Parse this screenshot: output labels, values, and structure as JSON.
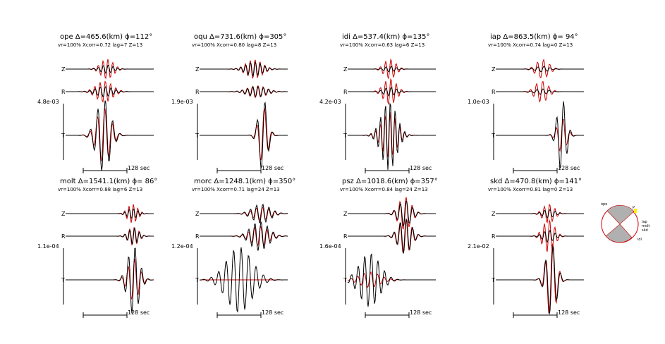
{
  "figure": {
    "stations": [
      {
        "title": "ope  Δ=465.6(km)  ϕ=112°",
        "info": "vr=100% Xcorr=0.72 lag=7 Z=13",
        "amplitude": "4.8e-03",
        "components": [
          {
            "label": "Z",
            "data_amp": 0.18,
            "synth_amp": 0.42,
            "center": 0.47,
            "period": 0.055,
            "width": 0.1
          },
          {
            "label": "R",
            "data_amp": 0.22,
            "synth_amp": 0.45,
            "center": 0.44,
            "period": 0.06,
            "width": 0.13
          },
          {
            "label": "T",
            "data_amp": 0.95,
            "synth_amp": 0.72,
            "center": 0.43,
            "period": 0.085,
            "width": 0.11
          }
        ],
        "time_label": "128 sec"
      },
      {
        "title": "oqu  Δ=731.6(km)  ϕ=305°",
        "info": "vr=100% Xcorr=0.80 lag=8 Z=13",
        "amplitude": "1.9e-03",
        "components": [
          {
            "label": "Z",
            "data_amp": 0.3,
            "synth_amp": 0.4,
            "center": 0.62,
            "period": 0.055,
            "width": 0.13
          },
          {
            "label": "R",
            "data_amp": 0.22,
            "synth_amp": 0.25,
            "center": 0.65,
            "period": 0.06,
            "width": 0.15
          },
          {
            "label": "T",
            "data_amp": 0.95,
            "synth_amp": 0.75,
            "center": 0.72,
            "period": 0.09,
            "width": 0.07
          }
        ],
        "time_label": "128 sec"
      },
      {
        "title": "idi  Δ=537.4(km)  ϕ=135°",
        "info": "vr=100% Xcorr=0.63 lag=6 Z=13",
        "amplitude": "4.2e-03",
        "components": [
          {
            "label": "Z",
            "data_amp": 0.12,
            "synth_amp": 0.42,
            "center": 0.48,
            "period": 0.06,
            "width": 0.09
          },
          {
            "label": "R",
            "data_amp": 0.18,
            "synth_amp": 0.55,
            "center": 0.48,
            "period": 0.06,
            "width": 0.1
          },
          {
            "label": "T",
            "data_amp": 0.9,
            "synth_amp": 0.6,
            "center": 0.47,
            "period": 0.055,
            "width": 0.12
          }
        ],
        "time_label": "128 sec"
      },
      {
        "title": "iap  Δ=863.5(km)  ϕ= 94°",
        "info": "vr=100% Xcorr=0.74 lag=0 Z=13",
        "amplitude": "1.0e-03",
        "components": [
          {
            "label": "Z",
            "data_amp": 0.12,
            "synth_amp": 0.4,
            "center": 0.53,
            "period": 0.07,
            "width": 0.1
          },
          {
            "label": "R",
            "data_amp": 0.12,
            "synth_amp": 0.45,
            "center": 0.52,
            "period": 0.07,
            "width": 0.1
          },
          {
            "label": "T",
            "data_amp": 0.95,
            "synth_amp": 0.45,
            "center": 0.75,
            "period": 0.08,
            "width": 0.07
          }
        ],
        "time_label": "128 sec"
      },
      {
        "title": "molt  Δ=1541.1(km)  ϕ= 86°",
        "info": "vr=100% Xcorr=0.88 lag=6 Z=13",
        "amplitude": "1.1e-04",
        "components": [
          {
            "label": "Z",
            "data_amp": 0.22,
            "synth_amp": 0.4,
            "center": 0.76,
            "period": 0.05,
            "width": 0.08
          },
          {
            "label": "R",
            "data_amp": 0.35,
            "synth_amp": 0.4,
            "center": 0.77,
            "period": 0.055,
            "width": 0.08
          },
          {
            "label": "T",
            "data_amp": 0.9,
            "synth_amp": 0.55,
            "center": 0.77,
            "period": 0.075,
            "width": 0.09
          }
        ],
        "time_label": "128 sec"
      },
      {
        "title": "morc  Δ=1248.1(km)  ϕ=350°",
        "info": "vr=100% Xcorr=0.71 lag=24 Z=13",
        "amplitude": "1.2e-04",
        "components": [
          {
            "label": "Z",
            "data_amp": 0.4,
            "synth_amp": 0.28,
            "center": 0.7,
            "period": 0.07,
            "width": 0.14
          },
          {
            "label": "R",
            "data_amp": 0.62,
            "synth_amp": 0.42,
            "center": 0.68,
            "period": 0.07,
            "width": 0.14
          },
          {
            "label": "T",
            "data_amp": 0.85,
            "synth_amp": 0.0,
            "center": 0.45,
            "period": 0.085,
            "width": 0.2
          }
        ],
        "time_label": "128 sec"
      },
      {
        "title": "psz  Δ=1018.6(km)  ϕ=357°",
        "info": "vr=100% Xcorr=0.84 lag=24 Z=13",
        "amplitude": "1.6e-04",
        "components": [
          {
            "label": "Z",
            "data_amp": 0.55,
            "synth_amp": 0.7,
            "center": 0.65,
            "period": 0.07,
            "width": 0.1
          },
          {
            "label": "R",
            "data_amp": 0.75,
            "synth_amp": 0.75,
            "center": 0.65,
            "period": 0.07,
            "width": 0.1
          },
          {
            "label": "T",
            "data_amp": 0.7,
            "synth_amp": 0.2,
            "center": 0.25,
            "period": 0.075,
            "width": 0.16
          }
        ],
        "time_label": "128 sec"
      },
      {
        "title": "skd  Δ=470.8(km)  ϕ=141°",
        "info": "vr=100% Xcorr=0.81 lag=0 Z=13",
        "amplitude": "2.1e-02",
        "components": [
          {
            "label": "Z",
            "data_amp": 0.18,
            "synth_amp": 0.4,
            "center": 0.6,
            "period": 0.06,
            "width": 0.09
          },
          {
            "label": "R",
            "data_amp": 0.25,
            "synth_amp": 0.7,
            "center": 0.6,
            "period": 0.06,
            "width": 0.09
          },
          {
            "label": "T",
            "data_amp": 0.95,
            "synth_amp": 1.0,
            "center": 0.63,
            "period": 0.085,
            "width": 0.08
          }
        ],
        "time_label": "128 sec"
      }
    ],
    "mechanism": {
      "station_labels": [
        "ope",
        "iap",
        "molt",
        "skd",
        "idi",
        "P"
      ],
      "colors": {
        "fill": "#b0b0b0",
        "edge": "#cc0000",
        "label": "#dd0000",
        "p_axis": "#ffee00"
      }
    },
    "colors": {
      "data": "#000000",
      "synthetic": "#cc0000"
    }
  }
}
